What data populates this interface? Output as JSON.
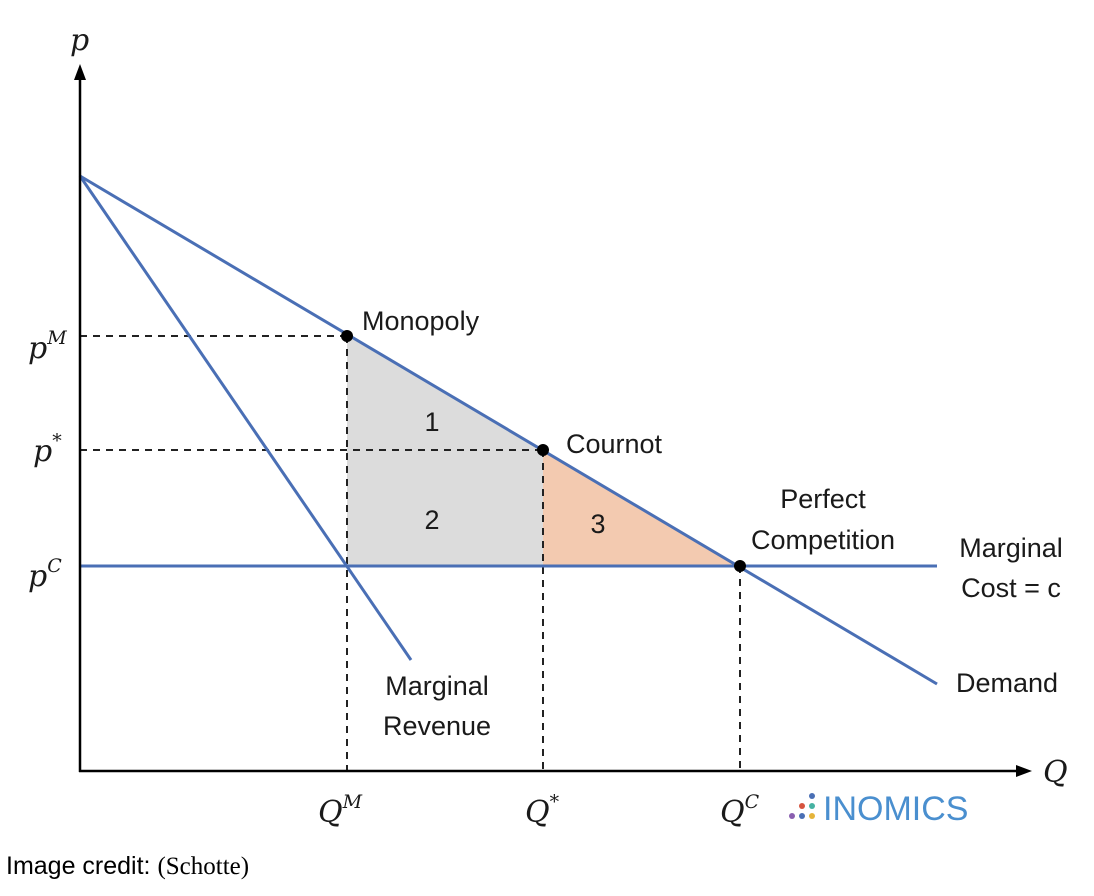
{
  "axes": {
    "y_label": "p",
    "x_label": "Q"
  },
  "price_ticks": [
    {
      "base": "p",
      "sup": "M"
    },
    {
      "base": "p",
      "sup": "*"
    },
    {
      "base": "p",
      "sup": "C"
    }
  ],
  "quantity_ticks": [
    {
      "base": "Q",
      "sup": "M"
    },
    {
      "base": "Q",
      "sup": "*"
    },
    {
      "base": "Q",
      "sup": "C"
    }
  ],
  "points": {
    "monopoly": "Monopoly",
    "cournot": "Cournot",
    "perfect_line1": "Perfect",
    "perfect_line2": "Competition"
  },
  "curves": {
    "mc_line1": "Marginal",
    "mc_line2": "Cost = c",
    "demand": "Demand",
    "mr_line1": "Marginal",
    "mr_line2": "Revenue"
  },
  "regions": {
    "r1": "1",
    "r2": "2",
    "r3": "3"
  },
  "colors": {
    "curve": "#4a6fb5",
    "region_grey": "#dcdcdc",
    "region_orange": "#f3cab0",
    "logo_text": "#4a8fcf"
  },
  "logo": {
    "text": "INOMICS"
  },
  "credit": {
    "prefix": "Image credit: ",
    "source": "(Schotte)"
  }
}
